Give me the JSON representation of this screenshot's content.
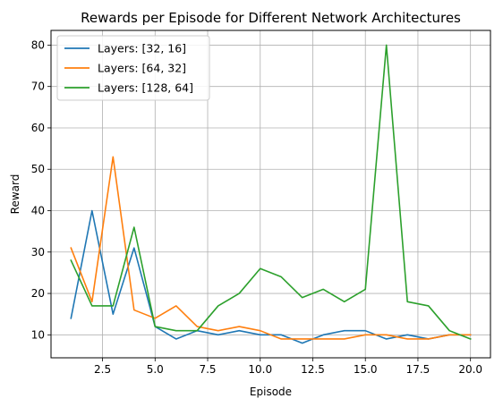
{
  "chart_data": {
    "type": "line",
    "title": "Rewards per Episode for Different Network Architectures",
    "xlabel": "Episode",
    "ylabel": "Reward",
    "xlim": [
      0.05,
      20.95
    ],
    "ylim": [
      4.45,
      83.55
    ],
    "xticks": [
      2.5,
      5.0,
      7.5,
      10.0,
      12.5,
      15.0,
      17.5,
      20.0
    ],
    "xtick_labels": [
      "2.5",
      "5.0",
      "7.5",
      "10.0",
      "12.5",
      "15.0",
      "17.5",
      "20.0"
    ],
    "yticks": [
      10,
      20,
      30,
      40,
      50,
      60,
      70,
      80
    ],
    "ytick_labels": [
      "10",
      "20",
      "30",
      "40",
      "50",
      "60",
      "70",
      "80"
    ],
    "grid": true,
    "legend_position": "top-left",
    "x": [
      1,
      2,
      3,
      4,
      5,
      6,
      7,
      8,
      9,
      10,
      11,
      12,
      13,
      14,
      15,
      16,
      17,
      18,
      19,
      20
    ],
    "series": [
      {
        "name": "Layers: [32, 16]",
        "color": "#1f77b4",
        "values": [
          14,
          40,
          15,
          31,
          12,
          9,
          11,
          10,
          11,
          10,
          10,
          8,
          10,
          11,
          11,
          9,
          10,
          9,
          10,
          10
        ]
      },
      {
        "name": "Layers: [64, 32]",
        "color": "#ff7f0e",
        "values": [
          31,
          18,
          53,
          16,
          14,
          17,
          12,
          11,
          12,
          11,
          9,
          9,
          9,
          9,
          10,
          10,
          9,
          9,
          10,
          10
        ]
      },
      {
        "name": "Layers: [128, 64]",
        "color": "#2ca02c",
        "values": [
          28,
          17,
          17,
          36,
          12,
          11,
          11,
          17,
          20,
          26,
          24,
          19,
          21,
          18,
          21,
          80,
          18,
          17,
          11,
          9
        ]
      }
    ]
  }
}
